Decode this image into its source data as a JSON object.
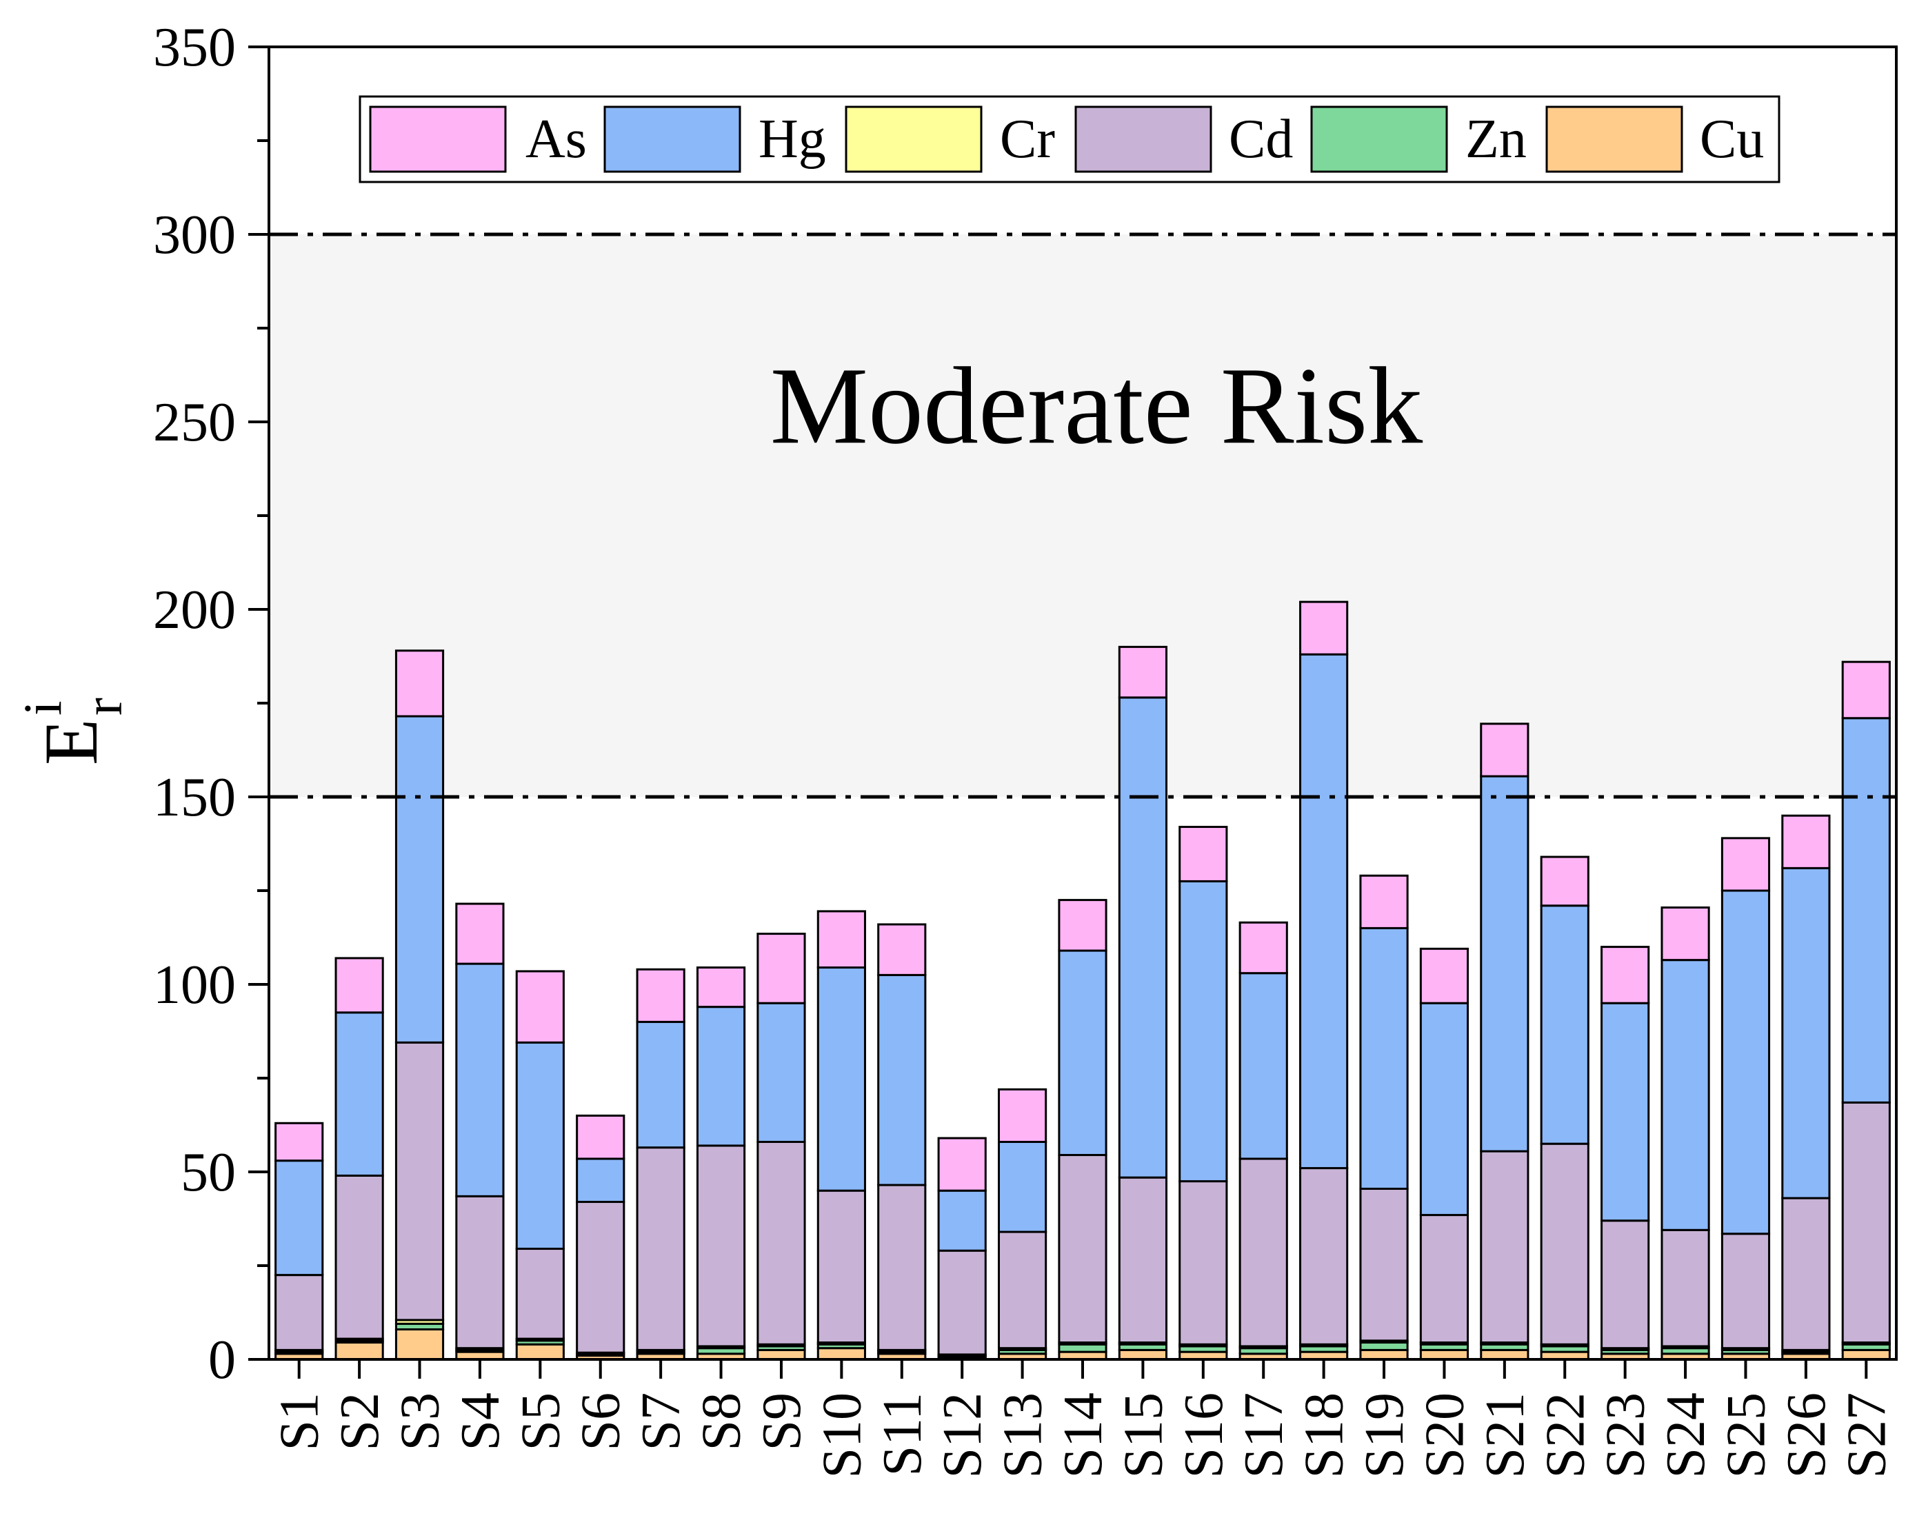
{
  "chart_data": {
    "type": "bar",
    "stacked": true,
    "title": "",
    "xlabel": "",
    "ylabel": {
      "base": "E",
      "superscript": "i",
      "subscript": "r"
    },
    "ylim": [
      0,
      350
    ],
    "yticks": [
      0,
      50,
      100,
      150,
      200,
      250,
      300,
      350
    ],
    "categories": [
      "S1",
      "S2",
      "S3",
      "S4",
      "S5",
      "S6",
      "S7",
      "S8",
      "S9",
      "S10",
      "S11",
      "S12",
      "S13",
      "S14",
      "S15",
      "S16",
      "S17",
      "S18",
      "S19",
      "S20",
      "S21",
      "S22",
      "S23",
      "S24",
      "S25",
      "S26",
      "S27"
    ],
    "series": [
      {
        "name": "Cu",
        "color": "#FFCC8C",
        "values": [
          1.5,
          4.5,
          8,
          2,
          4,
          1,
          1.5,
          1.5,
          2.5,
          3,
          1.5,
          0.5,
          1.5,
          2,
          2.5,
          2,
          1.5,
          2,
          2.5,
          2.5,
          2.5,
          2,
          1.5,
          1.5,
          1.5,
          1.5,
          2.5
        ]
      },
      {
        "name": "Zn",
        "color": "#7FD89B",
        "values": [
          0.5,
          0.5,
          1.5,
          0.5,
          1,
          0.5,
          0.5,
          1.5,
          1,
          1,
          0.5,
          0.5,
          1,
          2,
          1.5,
          1.5,
          1.5,
          1.5,
          2,
          1.5,
          1.5,
          1.5,
          1,
          1.5,
          1,
          0.5,
          1.5
        ]
      },
      {
        "name": "Cr",
        "color": "#FFFF99",
        "values": [
          0.5,
          0.5,
          1,
          0.5,
          0.5,
          0.3,
          0.5,
          0.5,
          0.5,
          0.5,
          0.5,
          0.3,
          0.5,
          0.5,
          0.5,
          0.5,
          0.5,
          0.5,
          0.5,
          0.5,
          0.5,
          0.5,
          0.5,
          0.5,
          0.5,
          0.5,
          0.5
        ]
      },
      {
        "name": "Cd",
        "color": "#C8B3D6",
        "values": [
          20,
          43.5,
          74,
          40.5,
          24,
          40.2,
          54,
          53.5,
          54,
          40.5,
          44,
          27.7,
          31,
          50,
          44,
          43.5,
          50,
          47,
          40.5,
          34,
          51,
          53.5,
          34,
          31,
          30.5,
          40.5,
          64
        ]
      },
      {
        "name": "Hg",
        "color": "#8BB8F8",
        "values": [
          30.5,
          43.5,
          87,
          62,
          55,
          11.5,
          33.5,
          37,
          37,
          59.5,
          56,
          16,
          24,
          54.5,
          128,
          80,
          49.5,
          137,
          69.5,
          56.5,
          100,
          63.5,
          58,
          72,
          91.5,
          88,
          102.5
        ]
      },
      {
        "name": "As",
        "color": "#FFB4F6",
        "values": [
          10,
          14.5,
          17.5,
          16,
          19,
          11.5,
          14,
          10.5,
          18.5,
          15,
          13.5,
          14,
          14,
          13.5,
          13.5,
          14.5,
          13.5,
          14,
          14,
          14.5,
          14,
          13,
          15,
          14,
          14,
          14,
          15
        ]
      }
    ],
    "legend": {
      "placement": "top-center",
      "order": [
        "As",
        "Hg",
        "Cr",
        "Cd",
        "Zn",
        "Cu"
      ]
    },
    "reference_lines": [
      {
        "y": 150,
        "style": "dash-dot"
      },
      {
        "y": 300,
        "style": "dash-dot"
      }
    ],
    "shaded_region": {
      "from": 150,
      "to": 300,
      "color": "#F5F5F5",
      "label": "Moderate Risk"
    },
    "grid": false
  }
}
